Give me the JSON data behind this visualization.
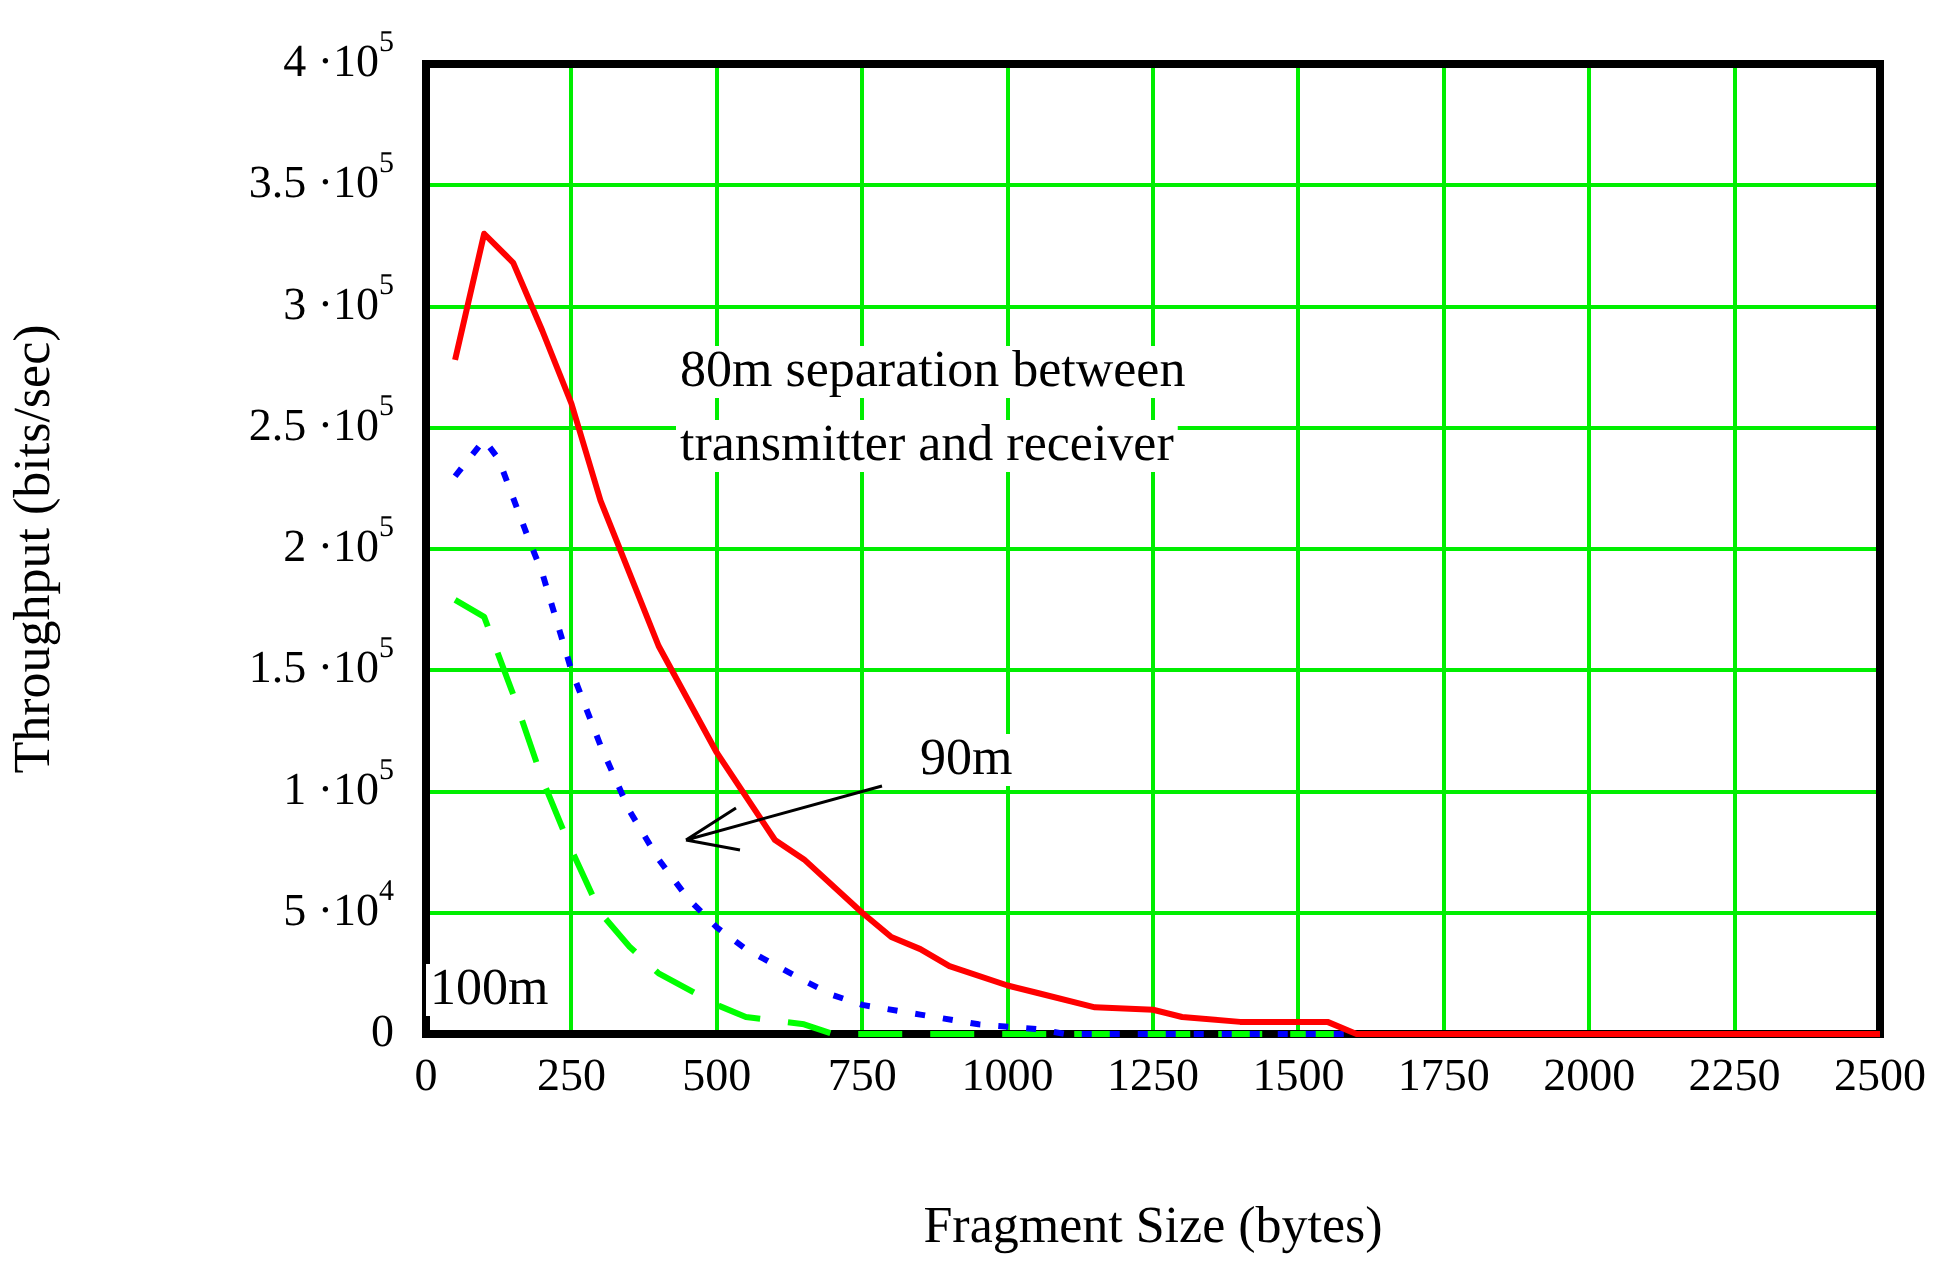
{
  "chart_data": {
    "type": "line",
    "xlabel": "Fragment Size (bytes)",
    "ylabel": "Throughput (bits/sec)",
    "xlim": [
      0,
      2500
    ],
    "xticks": [
      0,
      250,
      500,
      750,
      1000,
      1250,
      1500,
      1750,
      2000,
      2250,
      2500
    ],
    "ylim": [
      0,
      400000
    ],
    "yticks": [
      0,
      {
        "value": 50000,
        "label": "5 ·10$^{4}$"
      },
      {
        "value": 100000,
        "label": "1 ·10$^{5}$"
      },
      {
        "value": 150000,
        "label": "1.5 ·10$^{5}$"
      },
      {
        "value": 200000,
        "label": "2 ·10$^{5}$"
      },
      {
        "value": 250000,
        "label": "2.5 ·10$^{5}$"
      },
      {
        "value": 300000,
        "label": "3 ·10$^{5}$"
      },
      {
        "value": 350000,
        "label": "3.5 ·10$^{5}$"
      },
      {
        "value": 400000,
        "label": "4 ·10$^{5}$"
      }
    ],
    "grid": true,
    "legend": false,
    "marker": "none",
    "series": [
      {
        "color": "#ff0000",
        "line_style": "solid",
        "x": [
          50,
          100,
          150,
          200,
          250,
          300,
          400,
          500,
          600,
          650,
          750,
          800,
          850,
          900,
          1000,
          1050,
          1150,
          1250,
          1300,
          1400,
          1550,
          1600,
          2500
        ],
        "values": [
          278000,
          330000,
          318000,
          290000,
          260000,
          220000,
          160000,
          116000,
          80000,
          72000,
          50000,
          40000,
          35000,
          28000,
          20000,
          17000,
          11000,
          10000,
          7000,
          5000,
          5000,
          0,
          0
        ]
      },
      {
        "color": "#0000ff",
        "line_style": "dotted",
        "x": [
          50,
          100,
          125,
          175,
          200,
          250,
          300,
          350,
          400,
          450,
          500,
          550,
          650,
          700,
          750,
          850,
          950,
          1050,
          1100,
          2500
        ],
        "values": [
          230000,
          245000,
          237000,
          205000,
          190000,
          150000,
          119000,
          92000,
          72000,
          56000,
          44000,
          35000,
          22000,
          16000,
          12000,
          8000,
          4000,
          2000,
          0,
          0
        ]
      },
      {
        "color": "#00ff00",
        "line_style": "dashed",
        "x": [
          50,
          100,
          150,
          200,
          250,
          300,
          350,
          400,
          500,
          550,
          650,
          700,
          2500
        ],
        "values": [
          179000,
          172000,
          140000,
          105000,
          76000,
          50000,
          36000,
          25000,
          12000,
          7000,
          4000,
          0,
          0
        ]
      }
    ],
    "annotations": [
      "80m separation between\ntransmitter and receiver",
      "90m",
      "100m"
    ]
  }
}
